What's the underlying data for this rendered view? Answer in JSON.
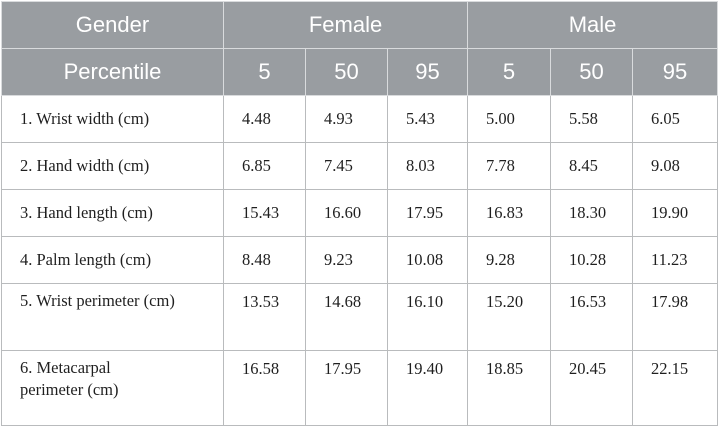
{
  "header": {
    "row1": {
      "label": "Gender",
      "groups": [
        "Female",
        "Male"
      ]
    },
    "row2": {
      "label": "Percentile",
      "percentiles": [
        "5",
        "50",
        "95",
        "5",
        "50",
        "95"
      ]
    }
  },
  "rows": [
    {
      "label": "1. Wrist width (cm)",
      "values": [
        "4.48",
        "4.93",
        "5.43",
        "5.00",
        "5.58",
        "6.05"
      ]
    },
    {
      "label": "2. Hand width (cm)",
      "values": [
        "6.85",
        "7.45",
        "8.03",
        "7.78",
        "8.45",
        "9.08"
      ]
    },
    {
      "label": "3. Hand length (cm)",
      "values": [
        "15.43",
        "16.60",
        "17.95",
        "16.83",
        "18.30",
        "19.90"
      ]
    },
    {
      "label": "4. Palm length (cm)",
      "values": [
        "8.48",
        "9.23",
        "10.08",
        "9.28",
        "10.28",
        "11.23"
      ]
    },
    {
      "label": "5. Wrist perimeter (cm)",
      "values": [
        "13.53",
        "14.68",
        "16.10",
        "15.20",
        "16.53",
        "17.98"
      ]
    },
    {
      "label": "6. Metacarpal perimeter (cm)",
      "values": [
        "16.58",
        "17.95",
        "19.40",
        "18.85",
        "20.45",
        "22.15"
      ]
    }
  ],
  "colors": {
    "header_bg": "#999da1",
    "header_text": "#ffffff",
    "border": "#b9bbbd"
  }
}
